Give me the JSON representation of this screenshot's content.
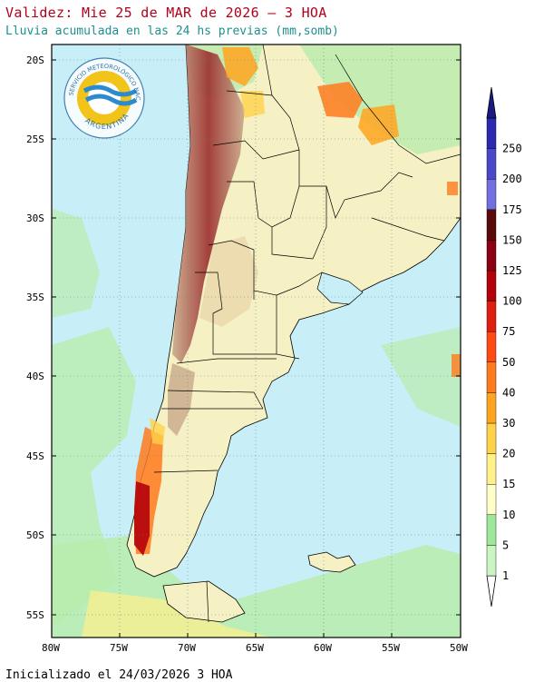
{
  "header": {
    "title": "Validez: Mie 25 de MAR de 2026 — 3 HOA",
    "subtitle": "Lluvia acumulada en las 24 hs previas (mm,somb)"
  },
  "footer": {
    "init": "Inicializado el 24/03/2026 3 HOA"
  },
  "logo": {
    "top_text": "SERVICIO METEOROLÓGICO NACIONAL",
    "bottom_text": "ARGENTINA"
  },
  "map": {
    "lat_labels": [
      "20S",
      "25S",
      "30S",
      "35S",
      "40S",
      "45S",
      "50S",
      "55S"
    ],
    "lon_labels": [
      "80W",
      "75W",
      "70W",
      "65W",
      "60W",
      "55W",
      "50W"
    ]
  },
  "legend": {
    "levels": [
      "1",
      "5",
      "10",
      "15",
      "20",
      "30",
      "40",
      "50",
      "75",
      "100",
      "125",
      "150",
      "175",
      "200",
      "250"
    ],
    "colors": [
      "#c8f5c0",
      "#9ee89a",
      "#ffffc8",
      "#fff08a",
      "#ffd24a",
      "#ffa41e",
      "#ff7a1e",
      "#ff4a14",
      "#e01e10",
      "#b4000a",
      "#8c0014",
      "#5a0a0a",
      "#7070e0",
      "#4848c8",
      "#2a2ab0",
      "#1a1a80"
    ]
  },
  "colors": {
    "ocean": "#c8eef7",
    "land": "#f6f1c4",
    "mountain_high": "#9b2d2d",
    "mountain_mid": "#c9a98c",
    "green_rain": "#b9ecae",
    "frame": "#000000"
  }
}
